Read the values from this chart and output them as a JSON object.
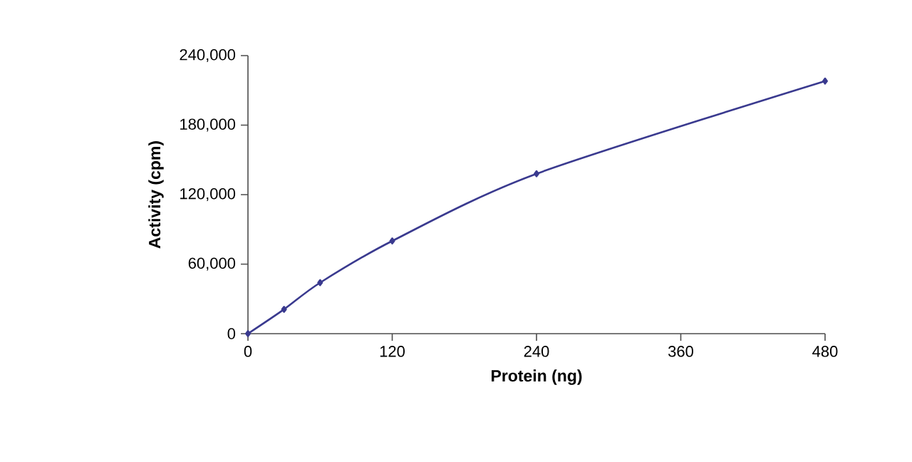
{
  "chart_data": {
    "type": "line",
    "xlabel": "Protein (ng)",
    "ylabel": "Activity (cpm)",
    "x": [
      0,
      30,
      60,
      120,
      240,
      480
    ],
    "series": [
      {
        "color": "#3a3a8f",
        "values": [
          0,
          21000,
          44000,
          80000,
          138000,
          218000
        ]
      }
    ],
    "xlim": [
      0,
      480
    ],
    "xticks": [
      0,
      120,
      240,
      360,
      480
    ],
    "ylim": [
      0,
      240000
    ],
    "yticks": [
      0,
      {
        "value": 60000,
        "label": "60,000"
      },
      {
        "value": 120000,
        "label": "120,000"
      },
      {
        "value": 180000,
        "label": "180,000"
      },
      {
        "value": 240000,
        "label": "240,000"
      }
    ],
    "marker": "diamond",
    "line_style": "solid",
    "grid": false,
    "legend": false
  }
}
